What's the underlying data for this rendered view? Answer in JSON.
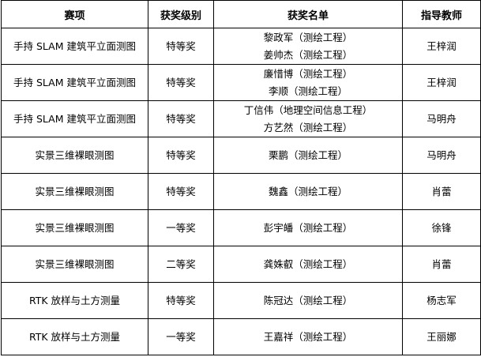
{
  "headers": [
    "赛项",
    "获奖级别",
    "获奖名单",
    "指导教师"
  ],
  "rows": [
    {
      "event": "手持 SLAM 建筑平立面测图",
      "level": "特等奖",
      "winners": [
        "黎政军（测绘工程）",
        "姜帅杰（测绘工程）"
      ],
      "advisor": "王梓润"
    },
    {
      "event": "手持 SLAM 建筑平立面测图",
      "level": "特等奖",
      "winners": [
        "廉惜博（测绘工程）",
        "李顺（测绘工程）"
      ],
      "advisor": "王梓润"
    },
    {
      "event": "手持 SLAM 建筑平立面测图",
      "level": "特等奖",
      "winners": [
        "丁信伟（地理空间信息工程）",
        "方艺然（测绘工程）"
      ],
      "advisor": "马明舟"
    },
    {
      "event": "实景三维裸眼测图",
      "level": "特等奖",
      "winners": [
        "栗鹏（测绘工程）"
      ],
      "advisor": "马明舟"
    },
    {
      "event": "实景三维裸眼测图",
      "level": "特等奖",
      "winners": [
        "魏鑫（测绘工程）"
      ],
      "advisor": "肖蕾"
    },
    {
      "event": "实景三维裸眼测图",
      "level": "一等奖",
      "winners": [
        "彭宇皤（测绘工程）"
      ],
      "advisor": "徐锋"
    },
    {
      "event": "实景三维裸眼测图",
      "level": "二等奖",
      "winners": [
        "龚姝叡（测绘工程）"
      ],
      "advisor": "肖蕾"
    },
    {
      "event": "RTK 放样与土方测量",
      "level": "特等奖",
      "winners": [
        "陈冠达（测绘工程）"
      ],
      "advisor": "杨志军"
    },
    {
      "event": "RTK 放样与土方测量",
      "level": "一等奖",
      "winners": [
        "王嘉祥（测绘工程）"
      ],
      "advisor": "王丽娜"
    }
  ]
}
